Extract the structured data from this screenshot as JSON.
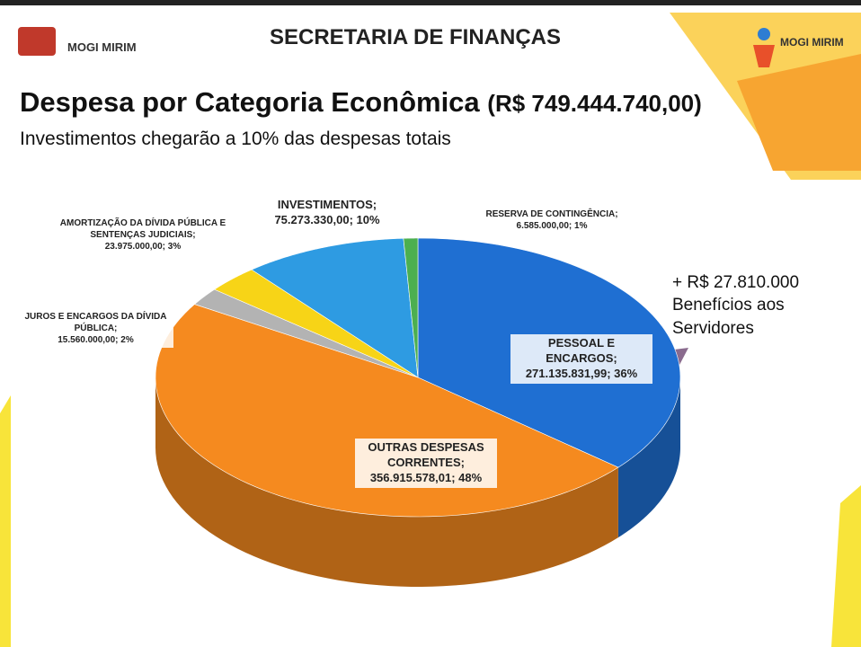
{
  "header": {
    "title": "SECRETARIA DE FINANÇAS",
    "logo_left": "MOGI MIRIM",
    "logo_right": "MOGI MIRIM"
  },
  "chart_data": {
    "type": "pie",
    "title": "Despesa por Categoria Econômica",
    "title_amount": "(R$ 749.444.740,00)",
    "subtitle": "Investimentos chegarão a 10% das despesas totais",
    "categories": [
      "PESSOAL E ENCARGOS;",
      "OUTRAS DESPESAS CORRENTES;",
      "JUROS E ENCARGOS DA DÍVIDA PÚBLICA;",
      "AMORTIZAÇÃO DA DÍVIDA PÚBLICA E SENTENÇAS JUDICIAIS;",
      "INVESTIMENTOS;",
      "RESERVA DE CONTINGÊNCIA;"
    ],
    "values": [
      271135831.99,
      356915578.01,
      15560000,
      23975000,
      75273330,
      6585000
    ],
    "value_labels": [
      "271.135.831,99; 36%",
      "356.915.578,01; 48%",
      "15.560.000,00; 2%",
      "23.975.000,00; 3%",
      "75.273.330,00; 10%",
      "6.585.000,00; 1%"
    ],
    "colors": [
      "#1f6fd2",
      "#f58a1f",
      "#b3b3b3",
      "#f7d417",
      "#2e9be2",
      "#4caf50"
    ],
    "annotation": [
      "+ R$ 27.810.000",
      "Benefícios aos",
      "Servidores"
    ]
  }
}
